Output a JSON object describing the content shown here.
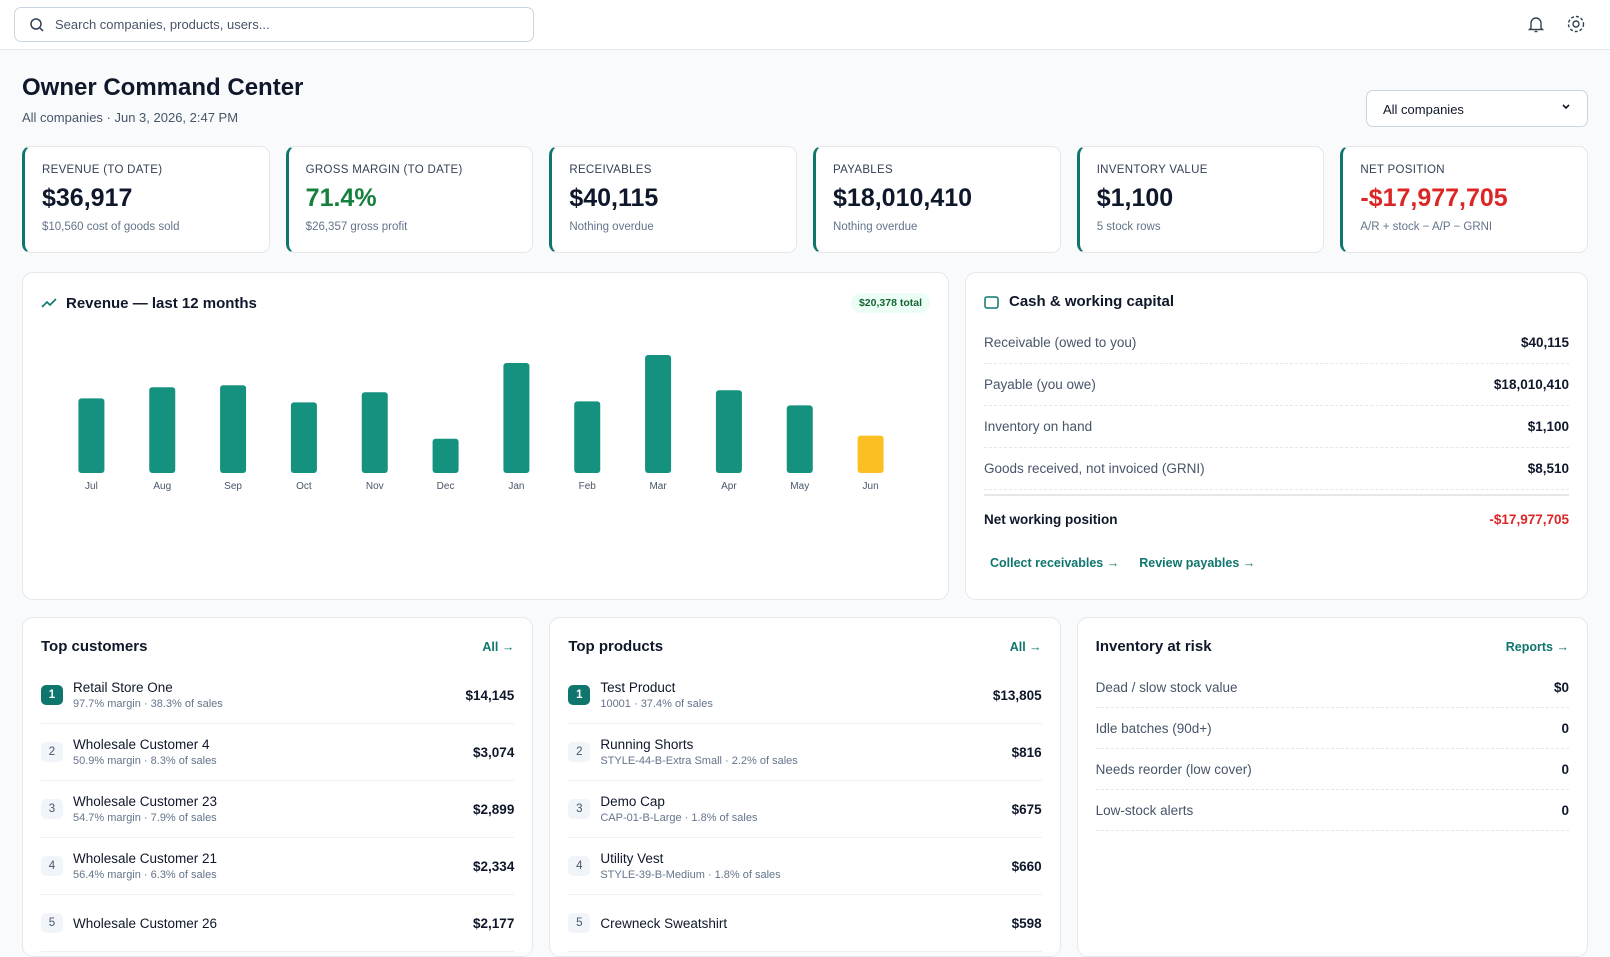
{
  "search_placeholder": "Search companies, products, users...",
  "header": {
    "title": "Owner Command Center",
    "subtitle": "All companies · Jun 3, 2026, 2:47 PM",
    "company_select": "All companies"
  },
  "kpis": [
    {
      "label": "REVENUE (TO DATE)",
      "value": "$36,917",
      "note": "$10,560 cost of goods sold",
      "value_color": "#0f172a"
    },
    {
      "label": "GROSS MARGIN (TO DATE)",
      "value": "71.4%",
      "note": "$26,357 gross profit",
      "value_color": "#15803d"
    },
    {
      "label": "RECEIVABLES",
      "value": "$40,115",
      "note": "Nothing overdue",
      "value_color": "#0f172a"
    },
    {
      "label": "PAYABLES",
      "value": "$18,010,410",
      "note": "Nothing overdue",
      "value_color": "#0f172a"
    },
    {
      "label": "INVENTORY VALUE",
      "value": "$1,100",
      "note": "5 stock rows",
      "value_color": "#0f172a"
    },
    {
      "label": "NET POSITION",
      "value": "-$17,977,705",
      "note": "A/R + stock − A/P − GRNI",
      "value_color": "#dc2626"
    }
  ],
  "chart_data": {
    "type": "bar",
    "title": "Revenue — last 12 months",
    "total_label": "$20,378 total",
    "categories": [
      "Jul",
      "Aug",
      "Sep",
      "Oct",
      "Nov",
      "Dec",
      "Jan",
      "Feb",
      "Mar",
      "Apr",
      "May",
      "Jun"
    ],
    "values": [
      1652,
      1897,
      1942,
      1562,
      1786,
      759,
      2433,
      1585,
      2611,
      1830,
      1495,
      826
    ],
    "colors": [
      "#14917f",
      "#14917f",
      "#14917f",
      "#14917f",
      "#14917f",
      "#14917f",
      "#14917f",
      "#14917f",
      "#14917f",
      "#14917f",
      "#14917f",
      "#fbbf24"
    ]
  },
  "cash": {
    "title": "Cash & working capital",
    "rows": [
      {
        "label": "Receivable (owed to you)",
        "value": "$40,115"
      },
      {
        "label": "Payable (you owe)",
        "value": "$18,010,410"
      },
      {
        "label": "Inventory on hand",
        "value": "$1,100"
      },
      {
        "label": "Goods received, not invoiced (GRNI)",
        "value": "$8,510"
      }
    ],
    "net": {
      "label": "Net working position",
      "value": "-$17,977,705"
    },
    "links": [
      "Collect receivables →",
      "Review payables →"
    ]
  },
  "top_customers": {
    "title": "Top customers",
    "link": "All →",
    "rows": [
      {
        "rank": "1",
        "name": "Retail Store One",
        "detail": "97.7% margin · 38.3% of sales",
        "value": "$14,145"
      },
      {
        "rank": "2",
        "name": "Wholesale Customer 4",
        "detail": "50.9% margin · 8.3% of sales",
        "value": "$3,074"
      },
      {
        "rank": "3",
        "name": "Wholesale Customer 23",
        "detail": "54.7% margin · 7.9% of sales",
        "value": "$2,899"
      },
      {
        "rank": "4",
        "name": "Wholesale Customer 21",
        "detail": "56.4% margin · 6.3% of sales",
        "value": "$2,334"
      },
      {
        "rank": "5",
        "name": "Wholesale Customer 26",
        "detail": "",
        "value": "$2,177"
      }
    ]
  },
  "top_products": {
    "title": "Top products",
    "link": "All →",
    "rows": [
      {
        "rank": "1",
        "name": "Test Product",
        "detail": "10001 · 37.4% of sales",
        "value": "$13,805"
      },
      {
        "rank": "2",
        "name": "Running Shorts",
        "detail": "STYLE-44-B-Extra Small · 2.2% of sales",
        "value": "$816"
      },
      {
        "rank": "3",
        "name": "Demo Cap",
        "detail": "CAP-01-B-Large · 1.8% of sales",
        "value": "$675"
      },
      {
        "rank": "4",
        "name": "Utility Vest",
        "detail": "STYLE-39-B-Medium · 1.8% of sales",
        "value": "$660"
      },
      {
        "rank": "5",
        "name": "Crewneck Sweatshirt",
        "detail": "",
        "value": "$598"
      }
    ]
  },
  "inventory_risk": {
    "title": "Inventory at risk",
    "link": "Reports →",
    "rows": [
      {
        "label": "Dead / slow stock value",
        "value": "$0"
      },
      {
        "label": "Idle batches (90d+)",
        "value": "0"
      },
      {
        "label": "Needs reorder (low cover)",
        "value": "0"
      },
      {
        "label": "Low-stock alerts",
        "value": "0"
      }
    ]
  }
}
